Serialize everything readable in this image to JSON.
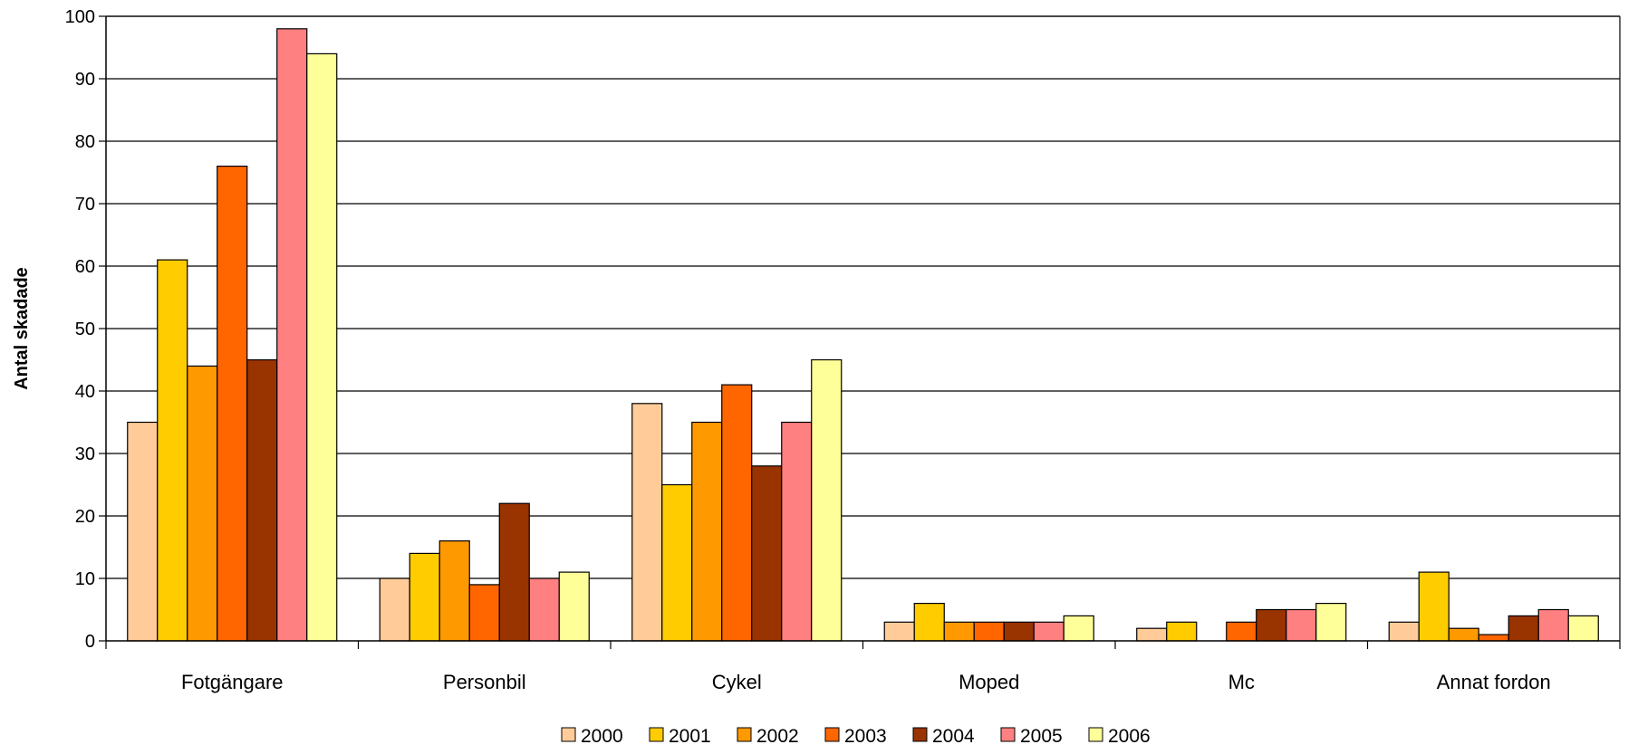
{
  "chart_data": {
    "type": "bar",
    "title": "",
    "xlabel": "",
    "ylabel": "Antal skadade",
    "ylim": [
      0,
      100
    ],
    "yticks": [
      0,
      10,
      20,
      30,
      40,
      50,
      60,
      70,
      80,
      90,
      100
    ],
    "grid": true,
    "legend_position": "bottom",
    "categories": [
      "Fotgängare",
      "Personbil",
      "Cykel",
      "Moped",
      "Mc",
      "Annat fordon"
    ],
    "series": [
      {
        "name": "2000",
        "color": "#FFCC99",
        "values": [
          35,
          10,
          38,
          3,
          2,
          3
        ]
      },
      {
        "name": "2001",
        "color": "#FFCC00",
        "values": [
          61,
          14,
          25,
          6,
          3,
          11
        ]
      },
      {
        "name": "2002",
        "color": "#FF9900",
        "values": [
          44,
          16,
          35,
          3,
          0,
          2
        ]
      },
      {
        "name": "2003",
        "color": "#FF6600",
        "values": [
          76,
          9,
          41,
          3,
          3,
          1
        ]
      },
      {
        "name": "2004",
        "color": "#993300",
        "values": [
          45,
          22,
          28,
          3,
          5,
          4
        ]
      },
      {
        "name": "2005",
        "color": "#FF8080",
        "values": [
          98,
          10,
          35,
          3,
          5,
          5
        ]
      },
      {
        "name": "2006",
        "color": "#FFFF99",
        "values": [
          94,
          11,
          45,
          4,
          6,
          4
        ]
      }
    ]
  }
}
